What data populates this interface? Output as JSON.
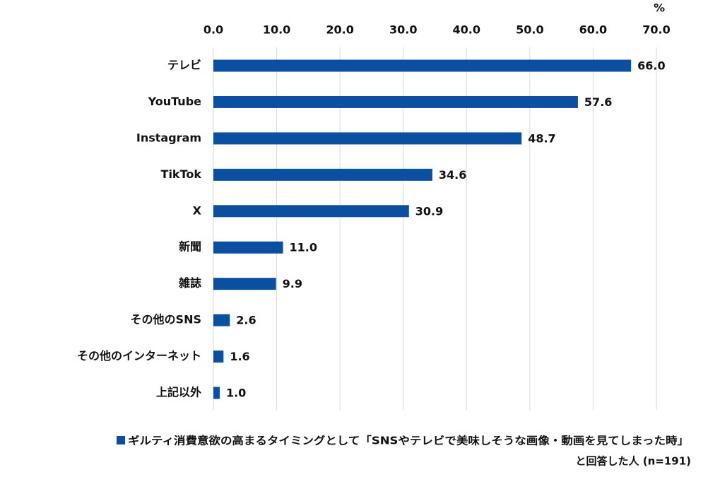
{
  "chart_data": {
    "type": "bar",
    "orientation": "horizontal",
    "unit_label": "%",
    "categories": [
      "テレビ",
      "YouTube",
      "Instagram",
      "TikTok",
      "X",
      "新聞",
      "雑誌",
      "その他のSNS",
      "その他のインターネット",
      "上記以外"
    ],
    "series": [
      {
        "name": "ギルティ消費意欲の高まるタイミングとして「SNSやテレビで美味しそうな画像・動画を見てしまった時」",
        "color": "#0a4fa0",
        "values": [
          66.0,
          57.6,
          48.7,
          34.6,
          30.9,
          11.0,
          9.9,
          2.6,
          1.6,
          1.0
        ],
        "value_labels": [
          "66.0",
          "57.6",
          "48.7",
          "34.6",
          "30.9",
          "11.0",
          "9.9",
          "2.6",
          "1.6",
          "1.0"
        ]
      }
    ],
    "legend_note": "と回答した人 (n=191)",
    "xlim": [
      0,
      70
    ],
    "xticks": [
      {
        "value": 0,
        "label": "0.0"
      },
      {
        "value": 10,
        "label": "10.0"
      },
      {
        "value": 20,
        "label": "20.0"
      },
      {
        "value": 30,
        "label": "30.0"
      },
      {
        "value": 40,
        "label": "40.0"
      },
      {
        "value": 50,
        "label": "50.0"
      },
      {
        "value": 60,
        "label": "60.0"
      },
      {
        "value": 70,
        "label": "70.0"
      }
    ],
    "grid": true
  }
}
